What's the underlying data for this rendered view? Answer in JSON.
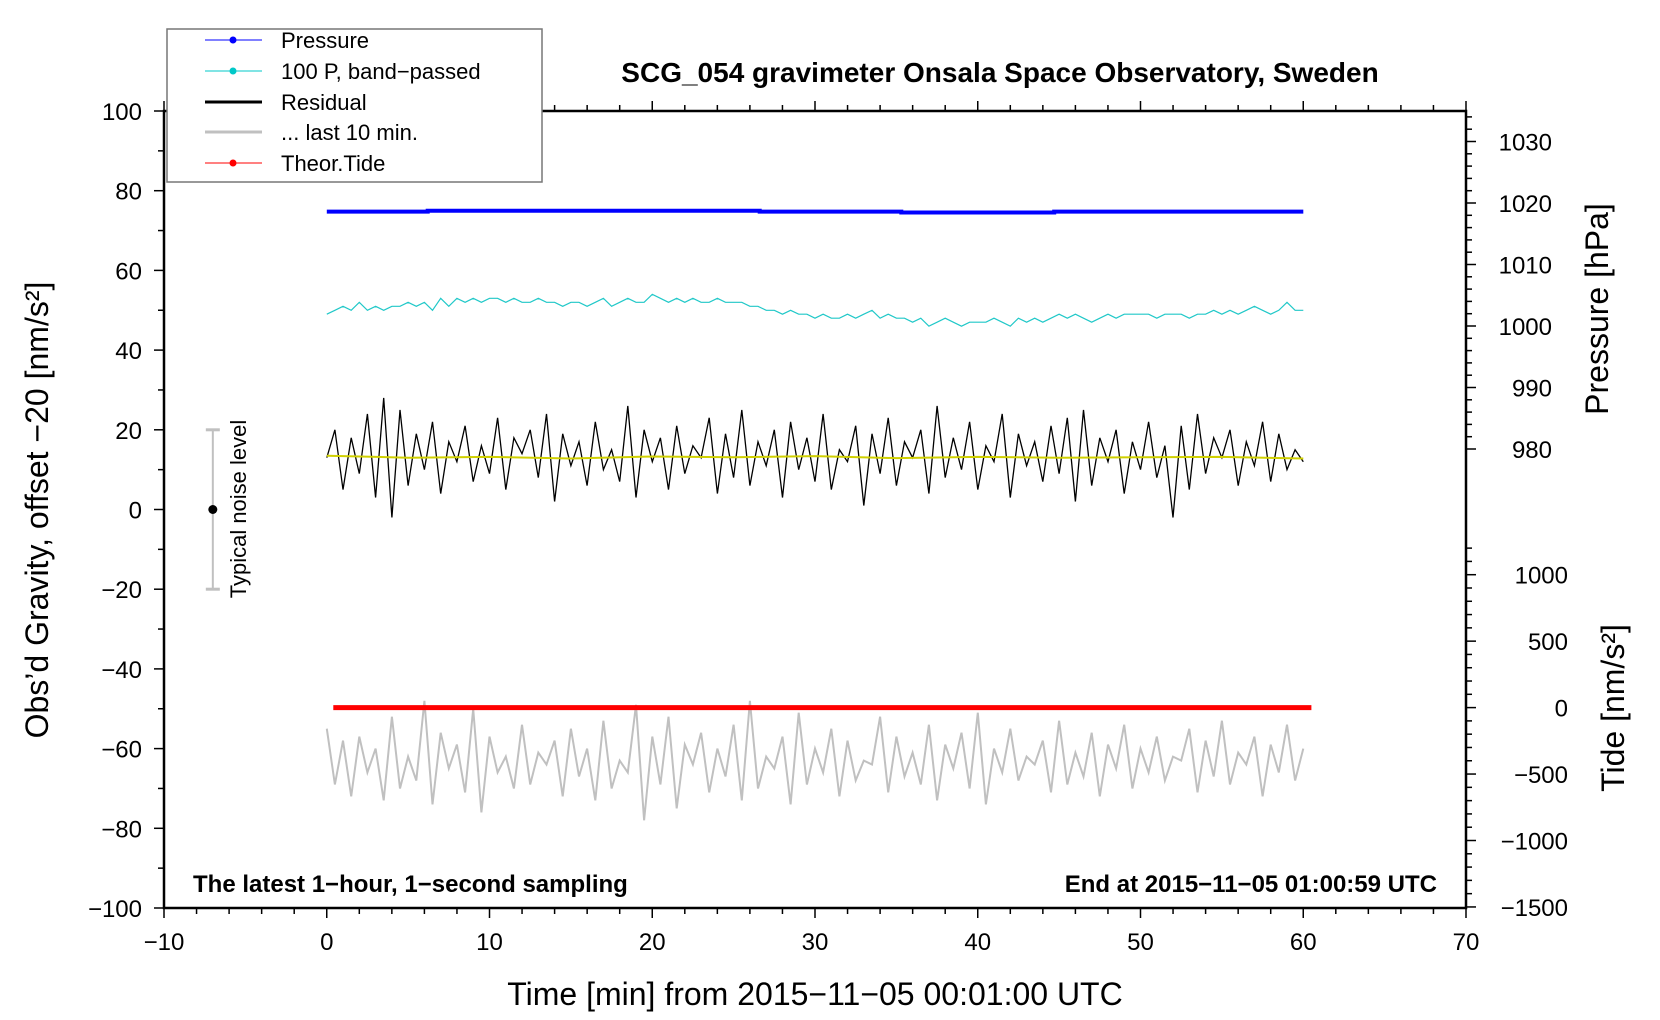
{
  "chart_data": {
    "type": "line",
    "title": "SCG_054 gravimeter Onsala Space Observatory, Sweden",
    "xlabel": "Time [min] from 2015−11−05 00:01:00 UTC",
    "ylabel": "Obs’d Gravity, offset −20 [nm/s²]",
    "y2label_pressure": "Pressure [hPa]",
    "y2label_tide": "Tide [nm/s²]",
    "xlim": [
      -10,
      70
    ],
    "ylim": [
      -100,
      100
    ],
    "pressure_lim": [
      980,
      1030
    ],
    "tide_lim": [
      -1500,
      1000
    ],
    "x_ticks": [
      "−10",
      "0",
      "10",
      "20",
      "30",
      "40",
      "50",
      "60",
      "70"
    ],
    "x_tick_values": [
      -10,
      0,
      10,
      20,
      30,
      40,
      50,
      60,
      70
    ],
    "y_ticks": [
      "100",
      "80",
      "60",
      "40",
      "20",
      "0",
      "−20",
      "−40",
      "−60",
      "−80",
      "−100"
    ],
    "y_tick_values": [
      100,
      80,
      60,
      40,
      20,
      0,
      -20,
      -40,
      -60,
      -80,
      -100
    ],
    "pressure_ticks": [
      "1030",
      "1020",
      "1010",
      "1000",
      "990",
      "980"
    ],
    "pressure_tick_values": [
      1030,
      1020,
      1010,
      1000,
      990,
      980
    ],
    "tide_ticks": [
      "1000",
      "500",
      "0",
      "−500",
      "−1000",
      "−1500"
    ],
    "tide_tick_values": [
      1000,
      500,
      0,
      -500,
      -1000,
      -1500
    ],
    "grid": false,
    "legend_position": "top-left",
    "legend": [
      {
        "label": "Pressure",
        "color": "#0000ff",
        "marker": true
      },
      {
        "label": "100 P, band−passed",
        "color": "#00c8c8",
        "marker": true
      },
      {
        "label": "Residual",
        "color": "#000000",
        "marker": false
      },
      {
        "label": "... last 10 min.",
        "color": "#c0c0c0",
        "marker": false
      },
      {
        "label": "Theor.Tide",
        "color": "#ff0000",
        "marker": true
      }
    ],
    "annotations": {
      "left_note": "The latest 1−hour, 1−second sampling",
      "right_note": "End at 2015−11−05 01:00:59 UTC",
      "noise_label": "Typical noise level"
    },
    "noise_bar": {
      "x": -7,
      "low": -20,
      "high": 20,
      "center": 0
    },
    "series": {
      "pressure": {
        "axis": "pressure",
        "color": "#0000ff",
        "points": [
          [
            0,
            1018.6
          ],
          [
            6.2,
            1018.6
          ],
          [
            6.2,
            1018.75
          ],
          [
            26.6,
            1018.75
          ],
          [
            26.6,
            1018.6
          ],
          [
            35.3,
            1018.6
          ],
          [
            35.3,
            1018.45
          ],
          [
            44.7,
            1018.45
          ],
          [
            44.7,
            1018.6
          ],
          [
            60,
            1018.6
          ]
        ]
      },
      "band_passed": {
        "axis": "left",
        "color": "#20c8c8",
        "x_start": 0,
        "x_step": 0.5,
        "values": [
          49,
          50,
          51,
          50,
          52,
          50,
          51,
          50,
          51,
          51,
          52,
          51,
          52,
          50,
          53,
          51,
          53,
          52,
          53,
          52,
          53,
          53,
          52,
          53,
          52,
          52,
          53,
          52,
          52,
          51,
          52,
          52,
          51,
          52,
          53,
          51,
          52,
          53,
          52,
          52,
          54,
          53,
          52,
          53,
          52,
          53,
          52,
          52,
          53,
          52,
          52,
          52,
          51,
          51,
          50,
          50,
          49,
          50,
          49,
          49,
          48,
          49,
          48,
          48,
          49,
          48,
          49,
          50,
          48,
          49,
          48,
          48,
          47,
          48,
          46,
          47,
          48,
          47,
          46,
          47,
          47,
          47,
          48,
          47,
          46,
          48,
          47,
          48,
          47,
          48,
          49,
          48,
          49,
          48,
          47,
          48,
          49,
          48,
          49,
          49,
          49,
          49,
          48,
          49,
          49,
          49,
          48,
          49,
          49,
          50,
          49,
          50,
          49,
          50,
          51,
          50,
          49,
          50,
          52,
          50,
          50
        ]
      },
      "residual": {
        "axis": "left",
        "color": "#000000",
        "x_start": 0,
        "x_step": 0.5,
        "values": [
          13,
          20,
          5,
          18,
          9,
          24,
          3,
          28,
          -2,
          25,
          6,
          19,
          10,
          22,
          4,
          17,
          12,
          21,
          7,
          16,
          9,
          23,
          5,
          18,
          14,
          20,
          8,
          24,
          2,
          19,
          11,
          17,
          6,
          22,
          10,
          15,
          7,
          26,
          3,
          20,
          12,
          18,
          5,
          21,
          9,
          16,
          13,
          23,
          4,
          19,
          8,
          25,
          6,
          17,
          11,
          20,
          3,
          22,
          10,
          18,
          7,
          24,
          5,
          15,
          12,
          21,
          1,
          19,
          9,
          23,
          6,
          17,
          13,
          20,
          4,
          26,
          8,
          18,
          10,
          22,
          5,
          16,
          12,
          24,
          3,
          19,
          11,
          17,
          7,
          21,
          9,
          23,
          2,
          25,
          6,
          18,
          12,
          20,
          4,
          17,
          10,
          22,
          8,
          16,
          -2,
          21,
          5,
          24,
          9,
          18,
          13,
          20,
          6,
          17,
          11,
          22,
          7,
          19,
          10,
          15,
          12
        ]
      },
      "residual_smoothed": {
        "axis": "left",
        "color": "#d0d000",
        "x_start": 0,
        "x_step": 5,
        "values": [
          13.5,
          13,
          13.2,
          12.8,
          13.3,
          13.1,
          13.4,
          12.9,
          13.2,
          13,
          13.1,
          13.2,
          12.8
        ]
      },
      "last_10_min": {
        "axis": "left",
        "color": "#c0c0c0",
        "x_start": 0,
        "x_step": 0.5,
        "values": [
          -55,
          -69,
          -58,
          -72,
          -57,
          -66,
          -60,
          -73,
          -52,
          -70,
          -62,
          -68,
          -48,
          -74,
          -56,
          -65,
          -59,
          -71,
          -50,
          -76,
          -57,
          -66,
          -62,
          -70,
          -54,
          -69,
          -61,
          -64,
          -58,
          -72,
          -55,
          -67,
          -60,
          -73,
          -53,
          -70,
          -63,
          -66,
          -49,
          -78,
          -57,
          -69,
          -52,
          -75,
          -59,
          -64,
          -56,
          -71,
          -60,
          -67,
          -54,
          -73,
          -48,
          -70,
          -62,
          -65,
          -57,
          -74,
          -51,
          -69,
          -60,
          -66,
          -55,
          -72,
          -58,
          -68,
          -63,
          -64,
          -52,
          -71,
          -57,
          -67,
          -61,
          -69,
          -54,
          -73,
          -59,
          -65,
          -56,
          -70,
          -51,
          -74,
          -60,
          -66,
          -55,
          -68,
          -62,
          -64,
          -58,
          -71,
          -53,
          -69,
          -61,
          -67,
          -56,
          -72,
          -59,
          -65,
          -54,
          -70,
          -60,
          -66,
          -57,
          -68,
          -62,
          -63,
          -55,
          -71,
          -58,
          -67,
          -53,
          -69,
          -61,
          -64,
          -57,
          -72,
          -59,
          -66,
          -54,
          -68,
          -60
        ]
      },
      "theor_tide": {
        "axis": "tide",
        "color": "#ff0000",
        "points": [
          [
            0.4,
            0
          ],
          [
            60.5,
            0
          ]
        ]
      }
    }
  }
}
